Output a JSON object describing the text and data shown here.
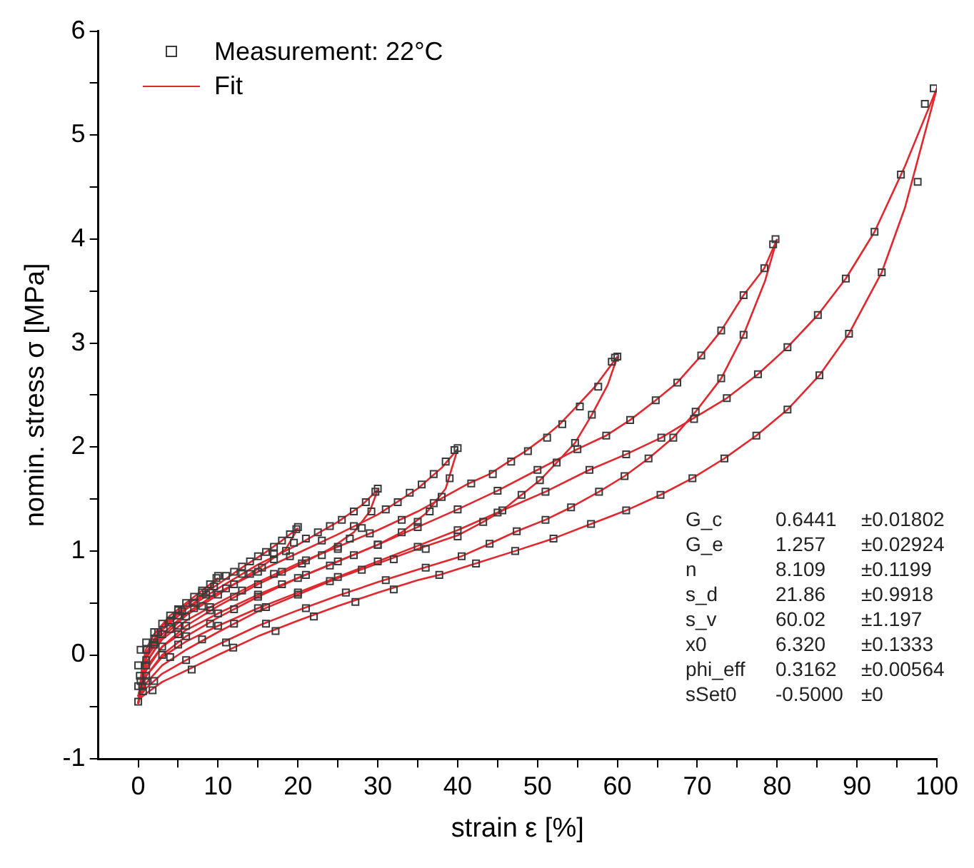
{
  "chart_data": {
    "type": "scatter",
    "xlabel": "strain ε [%]",
    "ylabel": "nomin. stress σ [MPa]",
    "xlim": [
      -5,
      100
    ],
    "xticks": [
      0,
      {
        "value": 5,
        "label": null
      },
      10,
      {
        "value": 15,
        "label": null
      },
      20,
      {
        "value": 25,
        "label": null
      },
      30,
      {
        "value": 35,
        "label": null
      },
      40,
      {
        "value": 45,
        "label": null
      },
      50,
      {
        "value": 55,
        "label": null
      },
      60,
      {
        "value": 65,
        "label": null
      },
      70,
      {
        "value": 75,
        "label": null
      },
      80,
      {
        "value": 85,
        "label": null
      },
      90,
      {
        "value": 95,
        "label": null
      },
      100
    ],
    "ylim": [
      -1,
      6
    ],
    "yticks": [
      -1,
      {
        "value": -0.5,
        "label": null
      },
      0,
      {
        "value": 0.5,
        "label": null
      },
      1,
      {
        "value": 1.5,
        "label": null
      },
      2,
      {
        "value": 2.5,
        "label": null
      },
      3,
      {
        "value": 3.5,
        "label": null
      },
      4,
      {
        "value": 4.5,
        "label": null
      },
      5,
      {
        "value": 5.5,
        "label": null
      },
      6
    ],
    "grid": false,
    "legend": "top left",
    "annotations": [
      "G_c",
      "0.6441",
      "±0.01802",
      "G_e",
      "1.257",
      "±0.02924",
      "n",
      "8.109",
      "±0.1199",
      "s_d",
      "21.86",
      "±0.9918",
      "s_v",
      "60.02",
      "±1.197",
      "x0",
      "6.320",
      "±0.1333",
      "phi_eff",
      "0.3162",
      "±0.00564",
      "sSet0",
      "-0.5000",
      "±0"
    ],
    "series": [
      {
        "name": "Measurement: 22°C",
        "type": "scatter",
        "marker": "square",
        "color": "#3a3a3a",
        "x": [
          0,
          0,
          0.3,
          1,
          2,
          3,
          4,
          5,
          6,
          7,
          8,
          9,
          9.8,
          10,
          9.5,
          8.5,
          7,
          5.5,
          4,
          2.5,
          1,
          0.2,
          11,
          12,
          13,
          14,
          15,
          16,
          17,
          18,
          19,
          19.8,
          20,
          19.5,
          18.5,
          17,
          15.5,
          14,
          12,
          10,
          8,
          6,
          4,
          2,
          0.3,
          21,
          22.5,
          24,
          25.5,
          27,
          28.5,
          29.7,
          30,
          29.2,
          28,
          26.5,
          25,
          23,
          20.5,
          18,
          15,
          12,
          9,
          6,
          3,
          0.5,
          31,
          32.5,
          34,
          35.5,
          37,
          38.5,
          39.6,
          40,
          39,
          38,
          36.5,
          35,
          33,
          30,
          27,
          24,
          21,
          18,
          15,
          12,
          9,
          6,
          3,
          0.6,
          41.7,
          44.4,
          46.7,
          48.8,
          51.2,
          53.1,
          55.3,
          57.6,
          59.3,
          59.7,
          60,
          56.8,
          54.7,
          52.4,
          50.3,
          48,
          45.6,
          43.2,
          40,
          36,
          32,
          28,
          24,
          20,
          16,
          12,
          8,
          4,
          1,
          58.6,
          61.6,
          64.8,
          67.5,
          70.5,
          73,
          75.8,
          78.4,
          79.5,
          79.8,
          75.8,
          73,
          69.8,
          67,
          63.9,
          60.9,
          57.7,
          54.2,
          51,
          47.4,
          44,
          40.5,
          36,
          31,
          26,
          21,
          16,
          11,
          6,
          2,
          51,
          56.5,
          61.1,
          65.5,
          69.6,
          73.7,
          77.6,
          81.3,
          85.1,
          88.6,
          92.2,
          95.5,
          98.5,
          99.6,
          97.6,
          93.1,
          89,
          85.3,
          81.3,
          77.4,
          73.4,
          69.4,
          65.4,
          61.1,
          56.7,
          52,
          47.2,
          42.3,
          37.7,
          32,
          27.2,
          22,
          17.2,
          11.9,
          6.7,
          1.8,
          0,
          45,
          40,
          35,
          30,
          25,
          20,
          15,
          10,
          5,
          1,
          55,
          50,
          45,
          40,
          35,
          30,
          25,
          20,
          15,
          10,
          5,
          1,
          37,
          33,
          29,
          25,
          21,
          17,
          13,
          9,
          5,
          1,
          27,
          23,
          19,
          15,
          11,
          7,
          3,
          17,
          13,
          9,
          5,
          2,
          8,
          5,
          2
        ],
        "values": [
          -0.3,
          -0.1,
          0.05,
          0.12,
          0.22,
          0.3,
          0.38,
          0.44,
          0.5,
          0.56,
          0.62,
          0.68,
          0.74,
          0.76,
          0.66,
          0.58,
          0.5,
          0.42,
          0.33,
          0.22,
          0.05,
          -0.2,
          0.76,
          0.8,
          0.85,
          0.9,
          0.95,
          0.99,
          1.04,
          1.1,
          1.16,
          1.21,
          1.23,
          1.08,
          1.0,
          0.92,
          0.84,
          0.78,
          0.68,
          0.58,
          0.47,
          0.37,
          0.25,
          0.1,
          -0.25,
          1.12,
          1.18,
          1.24,
          1.3,
          1.38,
          1.47,
          1.57,
          1.6,
          1.38,
          1.22,
          1.12,
          1.02,
          0.96,
          0.88,
          0.8,
          0.68,
          0.56,
          0.43,
          0.28,
          0.08,
          -0.3,
          1.4,
          1.47,
          1.56,
          1.64,
          1.74,
          1.86,
          1.97,
          1.99,
          1.7,
          1.52,
          1.38,
          1.28,
          1.18,
          1.06,
          0.96,
          0.86,
          0.77,
          0.68,
          0.56,
          0.44,
          0.3,
          0.18,
          0.0,
          -0.35,
          1.65,
          1.74,
          1.86,
          1.96,
          2.09,
          2.22,
          2.39,
          2.58,
          2.82,
          2.86,
          2.87,
          2.31,
          2.04,
          1.85,
          1.68,
          1.54,
          1.39,
          1.28,
          1.14,
          1.02,
          0.92,
          0.82,
          0.71,
          0.58,
          0.46,
          0.3,
          0.15,
          -0.02,
          -0.25,
          2.11,
          2.26,
          2.45,
          2.62,
          2.88,
          3.12,
          3.46,
          3.72,
          3.95,
          4.0,
          3.08,
          2.66,
          2.34,
          2.09,
          1.89,
          1.72,
          1.57,
          1.42,
          1.3,
          1.19,
          1.07,
          0.95,
          0.84,
          0.72,
          0.6,
          0.45,
          0.3,
          0.12,
          -0.05,
          -0.25,
          1.57,
          1.78,
          1.93,
          2.09,
          2.27,
          2.47,
          2.7,
          2.96,
          3.27,
          3.62,
          4.07,
          4.62,
          5.3,
          5.45,
          4.55,
          3.68,
          3.09,
          2.69,
          2.36,
          2.11,
          1.89,
          1.7,
          1.54,
          1.39,
          1.26,
          1.12,
          1.0,
          0.88,
          0.77,
          0.63,
          0.51,
          0.37,
          0.23,
          0.07,
          -0.14,
          -0.34,
          -0.45,
          1.37,
          1.2,
          1.04,
          0.9,
          0.75,
          0.6,
          0.45,
          0.28,
          0.1,
          -0.2,
          1.98,
          1.78,
          1.58,
          1.4,
          1.23,
          1.06,
          0.9,
          0.74,
          0.58,
          0.4,
          0.2,
          -0.1,
          1.46,
          1.3,
          1.17,
          1.04,
          0.91,
          0.78,
          0.62,
          0.46,
          0.28,
          -0.05,
          1.24,
          1.1,
          0.95,
          0.8,
          0.64,
          0.45,
          0.2,
          0.97,
          0.78,
          0.6,
          0.38,
          0.12,
          0.6,
          0.43,
          0.15
        ]
      },
      {
        "name": "Fit",
        "type": "line",
        "marker": "none",
        "color": "#e0282e",
        "x": [
          0,
          0.5,
          1,
          2,
          4,
          6,
          8,
          10
        ],
        "values": [
          -0.47,
          -0.1,
          0.06,
          0.2,
          0.38,
          0.5,
          0.62,
          0.74
        ]
      },
      {
        "type": "line",
        "marker": "none",
        "color": "#e0282e",
        "x": [
          0,
          1,
          3,
          5,
          7,
          8.5,
          10
        ],
        "values": [
          -0.4,
          -0.02,
          0.25,
          0.4,
          0.5,
          0.6,
          0.74
        ]
      },
      {
        "type": "line",
        "marker": "none",
        "color": "#e0282e",
        "x": [
          0,
          1,
          3,
          6,
          10,
          13,
          16,
          18,
          20
        ],
        "values": [
          -0.47,
          0.02,
          0.28,
          0.48,
          0.68,
          0.84,
          0.99,
          1.1,
          1.22
        ]
      },
      {
        "type": "line",
        "marker": "none",
        "color": "#e0282e",
        "x": [
          0,
          1,
          3,
          6,
          10,
          13,
          16,
          18.5,
          20
        ],
        "values": [
          -0.4,
          -0.08,
          0.17,
          0.38,
          0.58,
          0.73,
          0.88,
          1.02,
          1.22
        ]
      },
      {
        "type": "line",
        "marker": "none",
        "color": "#e0282e",
        "x": [
          0,
          1,
          3,
          6,
          10,
          15,
          20,
          25,
          28,
          30
        ],
        "values": [
          -0.47,
          0.0,
          0.24,
          0.44,
          0.64,
          0.87,
          1.06,
          1.28,
          1.44,
          1.59
        ]
      },
      {
        "type": "line",
        "marker": "none",
        "color": "#e0282e",
        "x": [
          0,
          1,
          3,
          6,
          10,
          15,
          20,
          24,
          27,
          29,
          30
        ],
        "values": [
          -0.4,
          -0.15,
          0.08,
          0.28,
          0.47,
          0.68,
          0.86,
          1.02,
          1.18,
          1.38,
          1.59
        ]
      },
      {
        "type": "line",
        "marker": "none",
        "color": "#e0282e",
        "x": [
          0,
          1,
          3,
          6,
          10,
          15,
          20,
          25,
          30,
          35,
          38,
          40
        ],
        "values": [
          -0.47,
          -0.03,
          0.2,
          0.4,
          0.6,
          0.8,
          0.98,
          1.16,
          1.35,
          1.6,
          1.8,
          1.98
        ]
      },
      {
        "type": "line",
        "marker": "none",
        "color": "#e0282e",
        "x": [
          0,
          1,
          3,
          6,
          10,
          15,
          20,
          25,
          30,
          33,
          36,
          38.5,
          40
        ],
        "values": [
          -0.4,
          -0.2,
          0.0,
          0.18,
          0.36,
          0.56,
          0.74,
          0.9,
          1.06,
          1.18,
          1.36,
          1.6,
          1.98
        ]
      },
      {
        "type": "line",
        "marker": "none",
        "color": "#e0282e",
        "x": [
          0,
          1,
          3,
          6,
          10,
          15,
          20,
          25,
          30,
          35,
          41.4,
          44,
          46.4,
          48.5,
          50.8,
          52.8,
          54.9,
          57.2,
          60
        ],
        "values": [
          -0.47,
          -0.07,
          0.15,
          0.33,
          0.5,
          0.7,
          0.88,
          1.04,
          1.2,
          1.38,
          1.65,
          1.74,
          1.86,
          1.96,
          2.09,
          2.22,
          2.39,
          2.58,
          2.87
        ]
      },
      {
        "type": "line",
        "marker": "none",
        "color": "#e0282e",
        "x": [
          0,
          1,
          3,
          6,
          10,
          15,
          20,
          25,
          30,
          35,
          40,
          43.2,
          45.6,
          48,
          50.3,
          52.4,
          54.7,
          56.8,
          58.8,
          60
        ],
        "values": [
          -0.42,
          -0.27,
          -0.1,
          0.05,
          0.22,
          0.42,
          0.58,
          0.74,
          0.88,
          1.02,
          1.15,
          1.28,
          1.39,
          1.54,
          1.68,
          1.85,
          2.04,
          2.31,
          2.6,
          2.87
        ]
      },
      {
        "type": "line",
        "marker": "none",
        "color": "#e0282e",
        "x": [
          0,
          1,
          3,
          6,
          10,
          15,
          20,
          25,
          30,
          35,
          40,
          45,
          50,
          55,
          58.6,
          61.6,
          64.8,
          67.5,
          70.5,
          73,
          75.8,
          78.4,
          80
        ],
        "values": [
          -0.47,
          -0.12,
          0.08,
          0.24,
          0.4,
          0.58,
          0.74,
          0.9,
          1.06,
          1.23,
          1.4,
          1.58,
          1.78,
          1.98,
          2.11,
          2.26,
          2.45,
          2.62,
          2.88,
          3.12,
          3.46,
          3.72,
          4.0
        ]
      },
      {
        "type": "line",
        "marker": "none",
        "color": "#e0282e",
        "x": [
          0,
          1,
          3,
          6,
          10,
          15,
          20,
          25,
          30,
          35,
          40.5,
          44,
          47.4,
          51,
          54.2,
          57.7,
          60.9,
          63.9,
          67,
          69.8,
          73,
          75.8,
          78.5,
          80
        ],
        "values": [
          -0.42,
          -0.32,
          -0.18,
          -0.05,
          0.1,
          0.28,
          0.43,
          0.57,
          0.7,
          0.82,
          0.95,
          1.07,
          1.19,
          1.3,
          1.42,
          1.57,
          1.72,
          1.89,
          2.09,
          2.34,
          2.66,
          3.08,
          3.6,
          4.0
        ]
      },
      {
        "type": "line",
        "marker": "none",
        "color": "#e0282e",
        "x": [
          0,
          1,
          3,
          6,
          10,
          15,
          20,
          25,
          30,
          35,
          40,
          45,
          51,
          56.5,
          61.1,
          65.5,
          73.7,
          77.6,
          81.3,
          85.1,
          88.6,
          92.2,
          96,
          100
        ],
        "values": [
          -0.47,
          -0.2,
          -0.02,
          0.13,
          0.28,
          0.45,
          0.6,
          0.75,
          0.9,
          1.05,
          1.2,
          1.37,
          1.57,
          1.78,
          1.93,
          2.09,
          2.47,
          2.7,
          2.96,
          3.27,
          3.62,
          4.07,
          4.7,
          5.45
        ]
      },
      {
        "type": "line",
        "marker": "none",
        "color": "#e0282e",
        "x": [
          0,
          1,
          3,
          6,
          10,
          15,
          20,
          25,
          30,
          35,
          37.7,
          42.3,
          47.2,
          52,
          56.7,
          61.1,
          65.4,
          69.4,
          73.4,
          77.4,
          81.3,
          85.3,
          89,
          93.1,
          96,
          100
        ],
        "values": [
          -0.43,
          -0.37,
          -0.26,
          -0.15,
          0.0,
          0.18,
          0.33,
          0.47,
          0.6,
          0.72,
          0.77,
          0.88,
          1.0,
          1.12,
          1.26,
          1.39,
          1.54,
          1.7,
          1.89,
          2.11,
          2.36,
          2.69,
          3.09,
          3.68,
          4.3,
          5.45
        ]
      }
    ]
  }
}
